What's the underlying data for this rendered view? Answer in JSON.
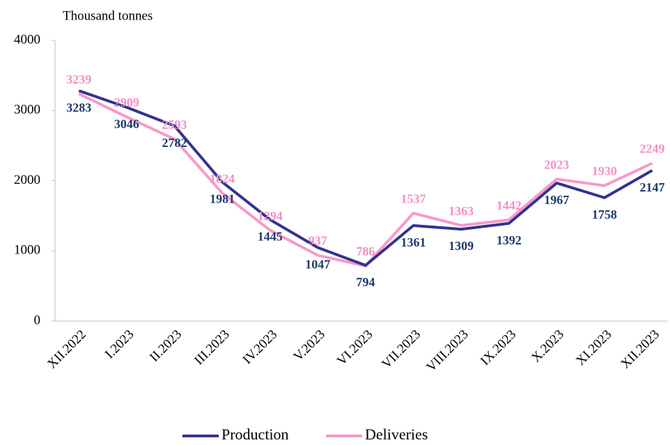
{
  "chart_data": {
    "type": "line",
    "y_axis_label": "Thousand tonnes",
    "categories": [
      "XII.2022",
      "I.2023",
      "II.2023",
      "III.2023",
      "IV.2023",
      "V.2023",
      "VI.2023",
      "VII.2023",
      "VIII.2023",
      "IX.2023",
      "X.2023",
      "XI.2023",
      "XII.2023"
    ],
    "series": [
      {
        "name": "Production",
        "color": "#33338f",
        "label_color": "#1f3a6b",
        "values": [
          3283,
          3046,
          2782,
          1981,
          1445,
          1047,
          794,
          1361,
          1309,
          1392,
          1967,
          1758,
          2147
        ]
      },
      {
        "name": "Deliveries",
        "color": "#f799c9",
        "label_color": "#f58fc4",
        "values": [
          3239,
          2909,
          2593,
          1824,
          1294,
          937,
          786,
          1537,
          1363,
          1442,
          2023,
          1930,
          2249
        ]
      }
    ],
    "ylim": [
      0,
      4000
    ],
    "yticks": [
      0,
      1000,
      2000,
      3000,
      4000
    ],
    "grid": false,
    "legend": "bottom"
  }
}
